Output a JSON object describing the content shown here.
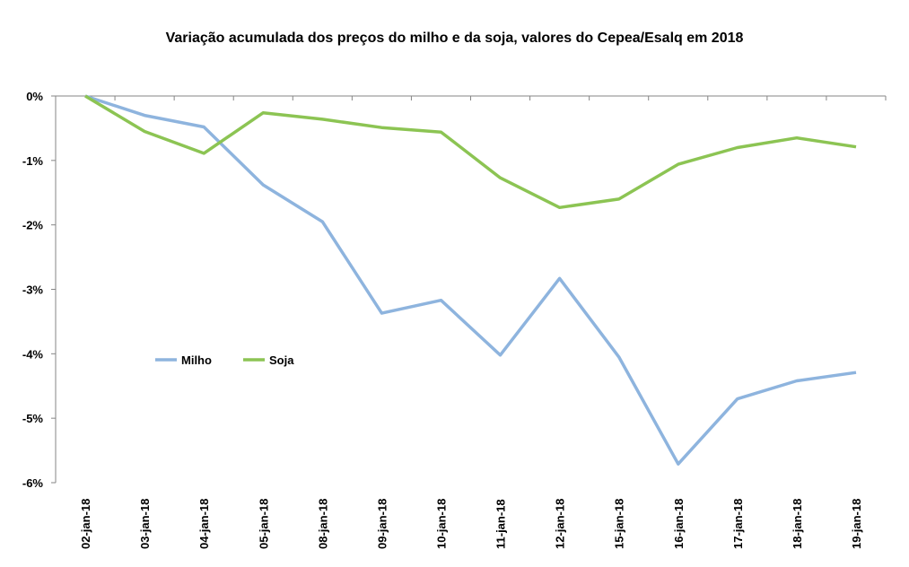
{
  "chart_data": {
    "type": "line",
    "title": "Variação acumulada dos preços do milho e da soja, valores do Cepea/Esalq em 2018",
    "xlabel": "",
    "ylabel": "",
    "categories": [
      "02-jan-18",
      "03-jan-18",
      "04-jan-18",
      "05-jan-18",
      "08-jan-18",
      "09-jan-18",
      "10-jan-18",
      "11-jan-18",
      "12-jan-18",
      "15-jan-18",
      "16-jan-18",
      "17-jan-18",
      "18-jan-18",
      "19-jan-18"
    ],
    "ylim": [
      -6,
      0
    ],
    "yticks": [
      0,
      -1,
      -2,
      -3,
      -4,
      -5,
      -6
    ],
    "ytick_labels": [
      "0%",
      "-1%",
      "-2%",
      "-3%",
      "-4%",
      "-5%",
      "-6%"
    ],
    "grid": false,
    "legend_position": "left-middle",
    "series": [
      {
        "name": "Milho",
        "color": "#8EB4DE",
        "values": [
          0.0,
          -0.3,
          -0.48,
          -1.38,
          -1.95,
          -3.37,
          -3.17,
          -4.02,
          -2.83,
          -4.05,
          -5.71,
          -4.7,
          -4.42,
          -4.29
        ]
      },
      {
        "name": "Soja",
        "color": "#8CC453",
        "values": [
          0.0,
          -0.55,
          -0.89,
          -0.26,
          -0.36,
          -0.49,
          -0.56,
          -1.27,
          -1.73,
          -1.6,
          -1.06,
          -0.8,
          -0.65,
          -0.79
        ]
      }
    ]
  }
}
